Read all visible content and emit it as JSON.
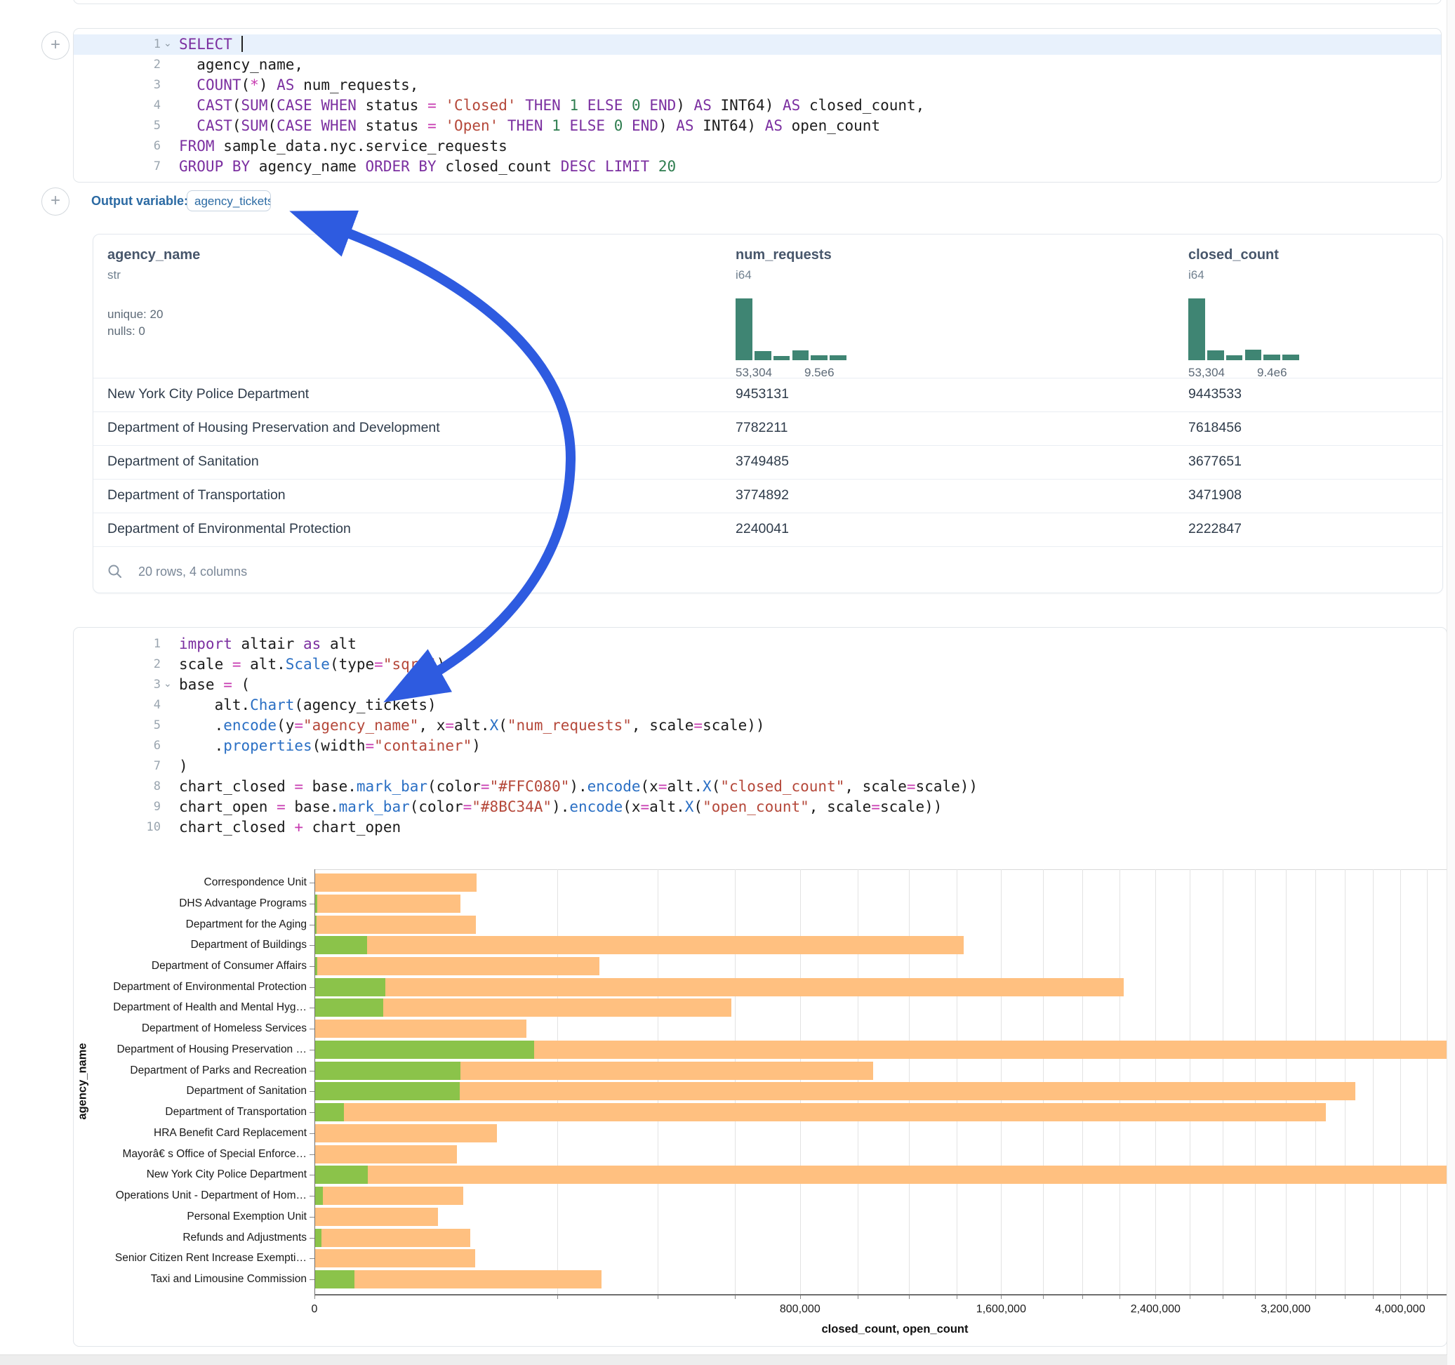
{
  "ui": {
    "add_cell_icon": "+",
    "accent_blue": "#2b6aa3",
    "arrow_color": "#2e5be0",
    "hist_color": "#3f8573"
  },
  "output_variable": {
    "label": "Output variable:",
    "chip": "agency_tickets"
  },
  "sql_cell": {
    "lines": [
      {
        "n": "1",
        "fold": true,
        "selected": true,
        "caret": true,
        "tokens": [
          [
            "k",
            "SELECT"
          ],
          [
            "p",
            " "
          ]
        ]
      },
      {
        "n": "2",
        "tokens": [
          [
            "p",
            "  agency_name,"
          ]
        ]
      },
      {
        "n": "3",
        "tokens": [
          [
            "p",
            "  "
          ],
          [
            "k",
            "COUNT"
          ],
          [
            "p",
            "("
          ],
          [
            "o",
            "*"
          ],
          [
            "p",
            ") "
          ],
          [
            "k",
            "AS"
          ],
          [
            "p",
            " num_requests,"
          ]
        ]
      },
      {
        "n": "4",
        "tokens": [
          [
            "p",
            "  "
          ],
          [
            "k",
            "CAST"
          ],
          [
            "p",
            "("
          ],
          [
            "k",
            "SUM"
          ],
          [
            "p",
            "("
          ],
          [
            "k",
            "CASE"
          ],
          [
            "p",
            " "
          ],
          [
            "k",
            "WHEN"
          ],
          [
            "p",
            " status "
          ],
          [
            "o",
            "="
          ],
          [
            "p",
            " "
          ],
          [
            "s",
            "'Closed'"
          ],
          [
            "p",
            " "
          ],
          [
            "k",
            "THEN"
          ],
          [
            "p",
            " "
          ],
          [
            "n",
            "1"
          ],
          [
            "p",
            " "
          ],
          [
            "k",
            "ELSE"
          ],
          [
            "p",
            " "
          ],
          [
            "n",
            "0"
          ],
          [
            "p",
            " "
          ],
          [
            "k",
            "END"
          ],
          [
            "p",
            ") "
          ],
          [
            "k",
            "AS"
          ],
          [
            "p",
            " INT64) "
          ],
          [
            "k",
            "AS"
          ],
          [
            "p",
            " closed_count,"
          ]
        ]
      },
      {
        "n": "5",
        "tokens": [
          [
            "p",
            "  "
          ],
          [
            "k",
            "CAST"
          ],
          [
            "p",
            "("
          ],
          [
            "k",
            "SUM"
          ],
          [
            "p",
            "("
          ],
          [
            "k",
            "CASE"
          ],
          [
            "p",
            " "
          ],
          [
            "k",
            "WHEN"
          ],
          [
            "p",
            " status "
          ],
          [
            "o",
            "="
          ],
          [
            "p",
            " "
          ],
          [
            "s",
            "'Open'"
          ],
          [
            "p",
            " "
          ],
          [
            "k",
            "THEN"
          ],
          [
            "p",
            " "
          ],
          [
            "n",
            "1"
          ],
          [
            "p",
            " "
          ],
          [
            "k",
            "ELSE"
          ],
          [
            "p",
            " "
          ],
          [
            "n",
            "0"
          ],
          [
            "p",
            " "
          ],
          [
            "k",
            "END"
          ],
          [
            "p",
            ") "
          ],
          [
            "k",
            "AS"
          ],
          [
            "p",
            " INT64) "
          ],
          [
            "k",
            "AS"
          ],
          [
            "p",
            " open_count"
          ]
        ]
      },
      {
        "n": "6",
        "tokens": [
          [
            "k",
            "FROM"
          ],
          [
            "p",
            " sample_data.nyc.service_requests"
          ]
        ]
      },
      {
        "n": "7",
        "tokens": [
          [
            "k",
            "GROUP BY"
          ],
          [
            "p",
            " agency_name "
          ],
          [
            "k",
            "ORDER BY"
          ],
          [
            "p",
            " closed_count "
          ],
          [
            "k",
            "DESC"
          ],
          [
            "p",
            " "
          ],
          [
            "k",
            "LIMIT"
          ],
          [
            "p",
            " "
          ],
          [
            "n",
            "20"
          ]
        ]
      }
    ]
  },
  "python_cell": {
    "lines": [
      {
        "n": "1",
        "tokens": [
          [
            "k",
            "import"
          ],
          [
            "p",
            " altair "
          ],
          [
            "k",
            "as"
          ],
          [
            "p",
            " alt"
          ]
        ]
      },
      {
        "n": "2",
        "tokens": [
          [
            "p",
            "scale "
          ],
          [
            "o",
            "="
          ],
          [
            "p",
            " alt."
          ],
          [
            "f",
            "Scale"
          ],
          [
            "p",
            "(type"
          ],
          [
            "o",
            "="
          ],
          [
            "s",
            "\"sqrt\""
          ],
          [
            "p",
            ")"
          ]
        ]
      },
      {
        "n": "3",
        "fold": true,
        "tokens": [
          [
            "p",
            "base "
          ],
          [
            "o",
            "="
          ],
          [
            "p",
            " ("
          ]
        ]
      },
      {
        "n": "4",
        "tokens": [
          [
            "p",
            "    alt."
          ],
          [
            "f",
            "Chart"
          ],
          [
            "p",
            "(agency_tickets)"
          ]
        ]
      },
      {
        "n": "5",
        "tokens": [
          [
            "p",
            "    ."
          ],
          [
            "f",
            "encode"
          ],
          [
            "p",
            "(y"
          ],
          [
            "o",
            "="
          ],
          [
            "s",
            "\"agency_name\""
          ],
          [
            "p",
            ", x"
          ],
          [
            "o",
            "="
          ],
          [
            "p",
            "alt."
          ],
          [
            "f",
            "X"
          ],
          [
            "p",
            "("
          ],
          [
            "s",
            "\"num_requests\""
          ],
          [
            "p",
            ", scale"
          ],
          [
            "o",
            "="
          ],
          [
            "p",
            "scale))"
          ]
        ]
      },
      {
        "n": "6",
        "tokens": [
          [
            "p",
            "    ."
          ],
          [
            "f",
            "properties"
          ],
          [
            "p",
            "(width"
          ],
          [
            "o",
            "="
          ],
          [
            "s",
            "\"container\""
          ],
          [
            "p",
            ")"
          ]
        ]
      },
      {
        "n": "7",
        "tokens": [
          [
            "p",
            ")"
          ]
        ]
      },
      {
        "n": "8",
        "tokens": [
          [
            "p",
            "chart_closed "
          ],
          [
            "o",
            "="
          ],
          [
            "p",
            " base."
          ],
          [
            "f",
            "mark_bar"
          ],
          [
            "p",
            "(color"
          ],
          [
            "o",
            "="
          ],
          [
            "s",
            "\"#FFC080\""
          ],
          [
            "p",
            ")."
          ],
          [
            "f",
            "encode"
          ],
          [
            "p",
            "(x"
          ],
          [
            "o",
            "="
          ],
          [
            "p",
            "alt."
          ],
          [
            "f",
            "X"
          ],
          [
            "p",
            "("
          ],
          [
            "s",
            "\"closed_count\""
          ],
          [
            "p",
            ", scale"
          ],
          [
            "o",
            "="
          ],
          [
            "p",
            "scale))"
          ]
        ]
      },
      {
        "n": "9",
        "tokens": [
          [
            "p",
            "chart_open "
          ],
          [
            "o",
            "="
          ],
          [
            "p",
            " base."
          ],
          [
            "f",
            "mark_bar"
          ],
          [
            "p",
            "(color"
          ],
          [
            "o",
            "="
          ],
          [
            "s",
            "\"#8BC34A\""
          ],
          [
            "p",
            ")."
          ],
          [
            "f",
            "encode"
          ],
          [
            "p",
            "(x"
          ],
          [
            "o",
            "="
          ],
          [
            "p",
            "alt."
          ],
          [
            "f",
            "X"
          ],
          [
            "p",
            "("
          ],
          [
            "s",
            "\"open_count\""
          ],
          [
            "p",
            ", scale"
          ],
          [
            "o",
            "="
          ],
          [
            "p",
            "scale))"
          ]
        ]
      },
      {
        "n": "10",
        "tokens": [
          [
            "p",
            "chart_closed "
          ],
          [
            "o",
            "+"
          ],
          [
            "p",
            " chart_open"
          ]
        ]
      }
    ]
  },
  "table": {
    "columns": [
      {
        "name": "agency_name",
        "type": "str",
        "stats": [
          "unique: 20",
          "nulls: 0"
        ]
      },
      {
        "name": "num_requests",
        "type": "i64",
        "hist": {
          "heights": [
            1,
            0.15,
            0.07,
            0.16,
            0.08,
            0.08
          ],
          "min_label": "53,304",
          "max_label": "9.5e6"
        }
      },
      {
        "name": "closed_count",
        "type": "i64",
        "hist": {
          "heights": [
            1,
            0.16,
            0.08,
            0.17,
            0.09,
            0.09
          ],
          "min_label": "53,304",
          "max_label": "9.4e6"
        }
      }
    ],
    "rows": [
      [
        "New York City Police Department",
        "9453131",
        "9443533"
      ],
      [
        "Department of Housing Preservation and Development",
        "7782211",
        "7618456"
      ],
      [
        "Department of Sanitation",
        "3749485",
        "3677651"
      ],
      [
        "Department of Transportation",
        "3774892",
        "3471908"
      ],
      [
        "Department of Environmental Protection",
        "2240041",
        "2222847"
      ]
    ],
    "footer": "20 rows, 4 columns"
  },
  "chart_data": {
    "type": "bar",
    "orientation": "horizontal",
    "scale": "sqrt",
    "x_domain": [
      0,
      4300000
    ],
    "grid_step": 200000,
    "xlabel": "closed_count, open_count",
    "ylabel": "agency_name",
    "legend": "none",
    "x_ticks": [
      {
        "v": 0,
        "label": "0"
      },
      {
        "v": 800000,
        "label": "800,000"
      },
      {
        "v": 1600000,
        "label": "1,600,000"
      },
      {
        "v": 2400000,
        "label": "2,400,000"
      },
      {
        "v": 3200000,
        "label": "3,200,000"
      },
      {
        "v": 4000000,
        "label": "4,000,000"
      }
    ],
    "categories": [
      "Correspondence Unit",
      "DHS Advantage Programs",
      "Department for the Aging",
      "Department of Buildings",
      "Department of Consumer Affairs",
      "Department of Environmental Protection",
      "Department of Health and Mental Hyg…",
      "Department of Homeless Services",
      "Department of Housing Preservation …",
      "Department of Parks and Recreation",
      "Department of Sanitation",
      "Department of Transportation",
      "HRA Benefit Card Replacement",
      "Mayorâ€ s Office of Special Enforce…",
      "New York City Police Department",
      "Operations Unit - Department of Hom…",
      "Personal Exemption Unit",
      "Refunds and Adjustments",
      "Senior Citizen Rent Increase Exempti…",
      "Taxi and Limousine Commission"
    ],
    "series": [
      {
        "name": "closed_count",
        "color": "#FFC080",
        "values": [
          89000,
          72000,
          88000,
          1430000,
          276000,
          2222847,
          590000,
          152000,
          7618456,
          1060000,
          3677651,
          3471908,
          113000,
          69000,
          9443533,
          75000,
          52000,
          82000,
          87600,
          280000
        ]
      },
      {
        "name": "open_count",
        "color": "#8BC34A",
        "values": [
          0,
          20,
          12,
          9400,
          25,
          17194,
          16000,
          0,
          163755,
          72000,
          71834,
          3000,
          0,
          0,
          9598,
          250,
          0,
          150,
          0,
          5500
        ]
      }
    ]
  }
}
